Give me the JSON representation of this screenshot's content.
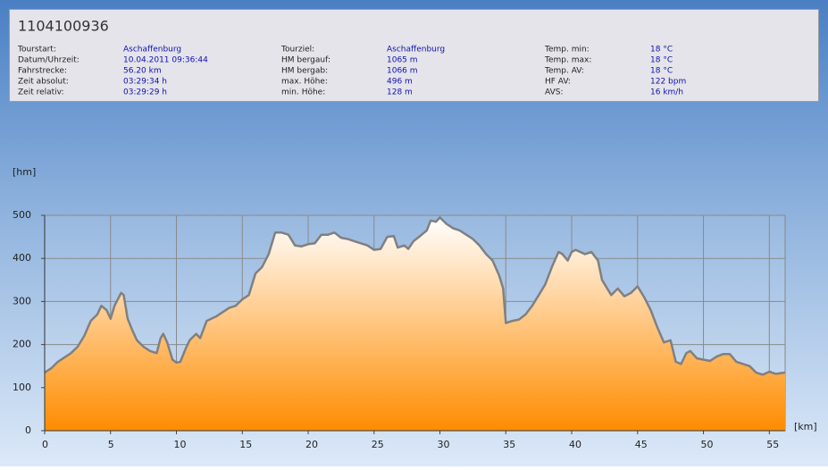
{
  "header": {
    "title": "1104100936",
    "columns": [
      [
        {
          "label": "Tourstart:",
          "value": "Aschaffenburg"
        },
        {
          "label": "Datum/Uhrzeit:",
          "value": "10.04.2011 09:36:44"
        },
        {
          "label": "Fahrstrecke:",
          "value": "56.20 km"
        },
        {
          "label": "Zeit absolut:",
          "value": "03:29:34 h"
        },
        {
          "label": "Zeit relativ:",
          "value": "03:29:29 h"
        }
      ],
      [
        {
          "label": "Tourziel:",
          "value": "Aschaffenburg"
        },
        {
          "label": "HM bergauf:",
          "value": "1065 m"
        },
        {
          "label": "HM bergab:",
          "value": "1066 m"
        },
        {
          "label": "max. Höhe:",
          "value": "496 m"
        },
        {
          "label": "min. Höhe:",
          "value": "128 m"
        }
      ],
      [
        {
          "label": "Temp. min:",
          "value": "18 °C"
        },
        {
          "label": "Temp. max:",
          "value": "18 °C"
        },
        {
          "label": "Temp. AV:",
          "value": "18 °C"
        },
        {
          "label": "HF AV:",
          "value": "122 bpm"
        },
        {
          "label": "AVS:",
          "value": "16 km/h"
        }
      ]
    ]
  },
  "chart_data": {
    "type": "area",
    "y_label": "[hm]",
    "x_label": "[km]",
    "x": [
      0,
      0.5,
      1,
      1.5,
      2,
      2.5,
      3,
      3.5,
      4,
      4.3,
      4.7,
      5,
      5.3,
      5.8,
      6,
      6.3,
      6.7,
      7,
      7.5,
      8,
      8.5,
      8.8,
      9,
      9.3,
      9.7,
      10,
      10.3,
      10.7,
      11,
      11.5,
      11.8,
      12.3,
      13,
      13.5,
      14,
      14.5,
      15,
      15.5,
      16,
      16.5,
      17,
      17.5,
      18,
      18.5,
      19,
      19.5,
      20,
      20.5,
      21,
      21.5,
      22,
      22.5,
      23,
      23.5,
      24,
      24.5,
      25,
      25.5,
      26,
      26.5,
      26.8,
      27.3,
      27.6,
      28,
      28.5,
      29,
      29.3,
      29.7,
      30,
      30.5,
      31,
      31.5,
      32,
      32.5,
      33,
      33.5,
      34,
      34.5,
      34.8,
      35,
      35.5,
      36,
      36.5,
      37,
      37.5,
      38,
      38.5,
      39,
      39.3,
      39.7,
      40,
      40.3,
      41,
      41.5,
      42,
      42.3,
      43,
      43.5,
      44,
      44.5,
      45,
      45.5,
      46,
      46.5,
      47,
      47.5,
      47.9,
      48.3,
      48.7,
      49,
      49.5,
      50,
      50.5,
      51,
      51.5,
      52,
      52.5,
      53,
      53.5,
      54,
      54.5,
      55,
      55.5,
      56.2
    ],
    "series": [
      {
        "color": "#808080",
        "fill": "#ff8c00",
        "values": [
          135,
          145,
          160,
          170,
          180,
          195,
          220,
          255,
          270,
          290,
          280,
          260,
          290,
          320,
          315,
          260,
          230,
          210,
          195,
          185,
          180,
          215,
          225,
          205,
          165,
          158,
          160,
          190,
          210,
          225,
          215,
          255,
          265,
          275,
          285,
          290,
          305,
          315,
          365,
          380,
          410,
          460,
          460,
          455,
          430,
          428,
          433,
          435,
          455,
          455,
          460,
          448,
          445,
          440,
          435,
          430,
          420,
          422,
          450,
          452,
          425,
          430,
          422,
          440,
          452,
          465,
          488,
          485,
          495,
          480,
          470,
          465,
          455,
          445,
          430,
          410,
          395,
          360,
          330,
          250,
          255,
          258,
          270,
          290,
          315,
          340,
          380,
          415,
          410,
          395,
          415,
          420,
          410,
          415,
          395,
          350,
          315,
          330,
          312,
          320,
          335,
          310,
          280,
          240,
          205,
          210,
          160,
          155,
          180,
          185,
          168,
          165,
          162,
          172,
          178,
          178,
          160,
          155,
          150,
          135,
          130,
          137,
          132,
          135
        ]
      }
    ],
    "xlim": [
      0,
      56.2
    ],
    "ylim": [
      0,
      500
    ],
    "xticks": [
      0,
      5,
      10,
      15,
      20,
      25,
      30,
      35,
      40,
      45,
      50,
      55
    ],
    "yticks": [
      0,
      100,
      200,
      300,
      400,
      500
    ],
    "grid": true
  }
}
